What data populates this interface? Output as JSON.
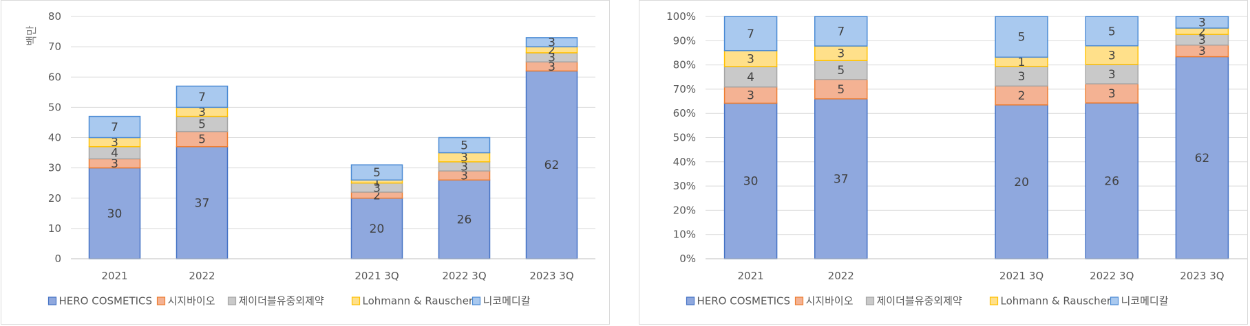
{
  "chart_data": [
    {
      "type": "bar",
      "stacked": true,
      "title": "",
      "xlabel": "",
      "ylabel": "백만",
      "ylim": [
        0,
        80
      ],
      "yticks": [
        "0",
        "10",
        "20",
        "30",
        "40",
        "50",
        "60",
        "70",
        "80"
      ],
      "categories": [
        "2021",
        "2022",
        "",
        "2021 3Q",
        "2022 3Q",
        "2023 3Q"
      ],
      "series": [
        {
          "name": "HERO COSMETICS",
          "color": "#8fa8de",
          "edge": "#4472c4",
          "values": [
            30,
            37,
            null,
            20,
            26,
            62
          ],
          "labels": [
            "30",
            "37",
            "",
            "20",
            "26",
            "62"
          ]
        },
        {
          "name": "시지바이오",
          "color": "#f4b293",
          "edge": "#ed7d31",
          "values": [
            3,
            5,
            null,
            2,
            3,
            3
          ],
          "labels": [
            "3",
            "5",
            "",
            "2",
            "3",
            "3"
          ]
        },
        {
          "name": "제이더블유중외제약",
          "color": "#c9c9c9",
          "edge": "#a5a5a5",
          "values": [
            4,
            5,
            null,
            3,
            3,
            3
          ],
          "labels": [
            "4",
            "5",
            "",
            "3",
            "3",
            "3"
          ]
        },
        {
          "name": "Lohmann & Rauscher",
          "color": "#ffe08a",
          "edge": "#ffc000",
          "values": [
            3,
            3,
            null,
            1,
            3,
            2
          ],
          "labels": [
            "3",
            "3",
            "",
            "1",
            "3",
            "2"
          ]
        },
        {
          "name": "니코메디칼",
          "color": "#a9c9ef",
          "edge": "#4a8ad4",
          "values": [
            7,
            7,
            null,
            5,
            5,
            3
          ],
          "labels": [
            "7",
            "7",
            "",
            "5",
            "5",
            "3"
          ]
        }
      ],
      "legend": "bottom",
      "grid": true
    },
    {
      "type": "bar",
      "stacked": true,
      "percent": true,
      "title": "",
      "xlabel": "",
      "ylabel": "",
      "ylim": [
        0,
        100
      ],
      "yticks": [
        "0%",
        "10%",
        "20%",
        "30%",
        "40%",
        "50%",
        "60%",
        "70%",
        "80%",
        "90%",
        "100%"
      ],
      "categories": [
        "2021",
        "2022",
        "",
        "2021 3Q",
        "2022 3Q",
        "2023 3Q"
      ],
      "series": [
        {
          "name": "HERO COSMETICS",
          "color": "#8fa8de",
          "edge": "#4472c4",
          "values": [
            64.2,
            66.0,
            null,
            63.5,
            64.3,
            83.4
          ],
          "labels": [
            "30",
            "37",
            "",
            "20",
            "26",
            "62"
          ]
        },
        {
          "name": "시지바이오",
          "color": "#f4b293",
          "edge": "#ed7d31",
          "values": [
            6.7,
            8.0,
            null,
            7.8,
            7.9,
            4.8
          ],
          "labels": [
            "3",
            "5",
            "",
            "2",
            "3",
            "3"
          ]
        },
        {
          "name": "제이더블유중외제약",
          "color": "#c9c9c9",
          "edge": "#a5a5a5",
          "values": [
            8.4,
            7.8,
            null,
            8.1,
            8.0,
            4.4
          ],
          "labels": [
            "4",
            "5",
            "",
            "3",
            "3",
            "3"
          ]
        },
        {
          "name": "Lohmann & Rauscher",
          "color": "#ffe08a",
          "edge": "#ffc000",
          "values": [
            6.6,
            6.0,
            null,
            3.8,
            7.7,
            2.6
          ],
          "labels": [
            "3",
            "3",
            "",
            "1",
            "3",
            "2"
          ]
        },
        {
          "name": "니코메디칼",
          "color": "#a9c9ef",
          "edge": "#4a8ad4",
          "values": [
            14.1,
            12.2,
            null,
            16.8,
            12.1,
            4.8
          ],
          "labels": [
            "7",
            "7",
            "",
            "5",
            "5",
            "3"
          ]
        }
      ],
      "legend": "bottom",
      "grid": true
    }
  ]
}
